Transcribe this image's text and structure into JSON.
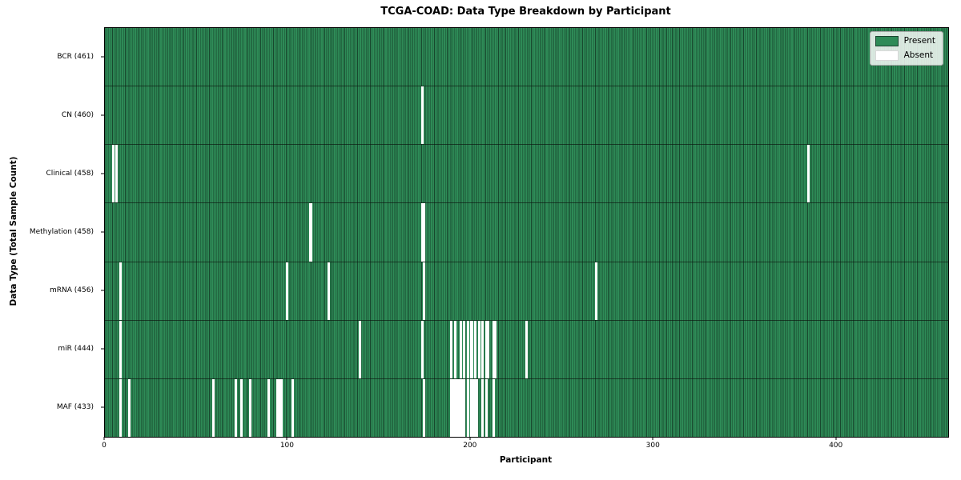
{
  "title": "TCGA-COAD: Data Type Breakdown by Participant",
  "xlabel": "Participant",
  "ylabel": "Data Type (Total Sample Count)",
  "legend": {
    "present": "Present",
    "absent": "Absent"
  },
  "colors": {
    "present": "#2e8b57",
    "absent": "#ffffff",
    "bar_edge": "#10281a",
    "legend_bg": "#ebebeb"
  },
  "chart_data": {
    "type": "heatmap",
    "title": "TCGA-COAD: Data Type Breakdown by Participant",
    "xlabel": "Participant",
    "ylabel": "Data Type (Total Sample Count)",
    "legend_entries": [
      "Present",
      "Absent"
    ],
    "legend_position": "upper right",
    "n_participants": 461,
    "xlim": [
      0,
      461
    ],
    "x_ticks": [
      0,
      100,
      200,
      300,
      400
    ],
    "rows": [
      {
        "label": "BCR (461)",
        "data_type": "BCR",
        "present_count": 461,
        "absent_participants": []
      },
      {
        "label": "CN (460)",
        "data_type": "CN",
        "present_count": 460,
        "absent_participants": [
          173
        ]
      },
      {
        "label": "Clinical (458)",
        "data_type": "Clinical",
        "present_count": 458,
        "absent_participants": [
          4,
          6,
          384
        ]
      },
      {
        "label": "Methylation (458)",
        "data_type": "Methylation",
        "present_count": 458,
        "absent_participants": [
          112,
          173,
          174
        ]
      },
      {
        "label": "mRNA (456)",
        "data_type": "mRNA",
        "present_count": 456,
        "absent_participants": [
          8,
          99,
          122,
          174,
          268
        ]
      },
      {
        "label": "miR (444)",
        "data_type": "miR",
        "present_count": 444,
        "absent_participants": [
          8,
          139,
          173,
          189,
          191,
          194,
          196,
          198,
          200,
          202,
          204,
          206,
          208,
          209,
          212,
          213,
          230
        ]
      },
      {
        "label": "MAF (433)",
        "data_type": "MAF",
        "present_count": 433,
        "absent_participants": [
          8,
          13,
          59,
          71,
          74,
          79,
          89,
          94,
          95,
          96,
          102,
          174,
          189,
          190,
          191,
          192,
          193,
          194,
          195,
          196,
          198,
          200,
          201,
          202,
          203,
          206,
          208,
          212
        ]
      }
    ]
  }
}
